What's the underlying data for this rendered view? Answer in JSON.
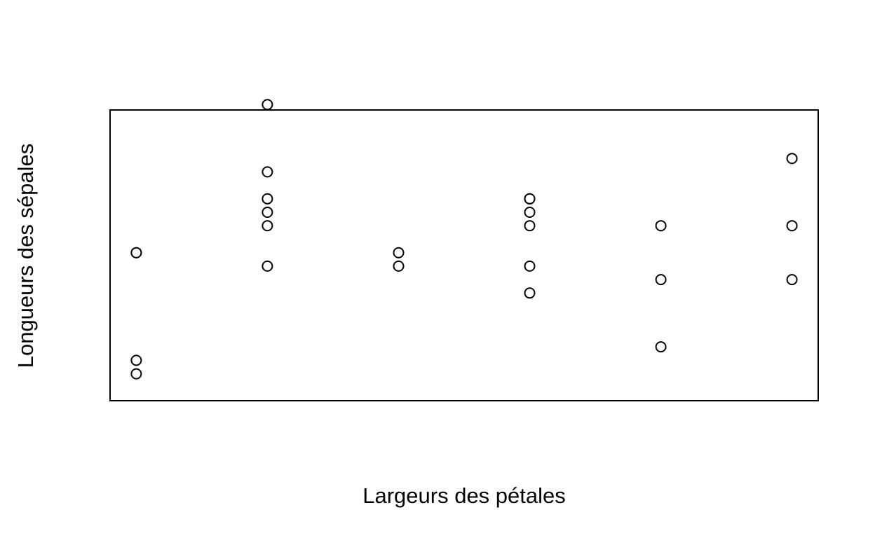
{
  "chart_data": {
    "type": "scatter",
    "title": "",
    "xlabel": "Largeurs des pétales",
    "ylabel": "Longueurs des sépales",
    "xlim": [
      0.8,
      6.2
    ],
    "ylim": [
      4.3,
      6.46
    ],
    "x_ticks_visible": false,
    "y_ticks_visible": false,
    "grid": false,
    "legend": "none",
    "colors": {
      "point_fill": "#ffffff",
      "point_stroke": "#000000",
      "frame": "#000000"
    },
    "series": [
      {
        "points": [
          {
            "x": 1,
            "y": 5.4
          },
          {
            "x": 1,
            "y": 5.4
          },
          {
            "x": 1,
            "y": 4.6
          },
          {
            "x": 1,
            "y": 4.5
          },
          {
            "x": 2,
            "y": 6.5
          },
          {
            "x": 2,
            "y": 6.0
          },
          {
            "x": 2,
            "y": 5.8
          },
          {
            "x": 2,
            "y": 5.7
          },
          {
            "x": 2,
            "y": 5.6
          },
          {
            "x": 2,
            "y": 5.3
          },
          {
            "x": 3,
            "y": 5.4
          },
          {
            "x": 3,
            "y": 5.3
          },
          {
            "x": 4,
            "y": 5.8
          },
          {
            "x": 4,
            "y": 5.8
          },
          {
            "x": 4,
            "y": 5.7
          },
          {
            "x": 4,
            "y": 5.6
          },
          {
            "x": 4,
            "y": 5.3
          },
          {
            "x": 4,
            "y": 5.1
          },
          {
            "x": 5,
            "y": 5.6
          },
          {
            "x": 5,
            "y": 5.2
          },
          {
            "x": 5,
            "y": 4.7
          },
          {
            "x": 6,
            "y": 6.1
          },
          {
            "x": 6,
            "y": 5.6
          },
          {
            "x": 6,
            "y": 5.2
          }
        ]
      }
    ]
  }
}
